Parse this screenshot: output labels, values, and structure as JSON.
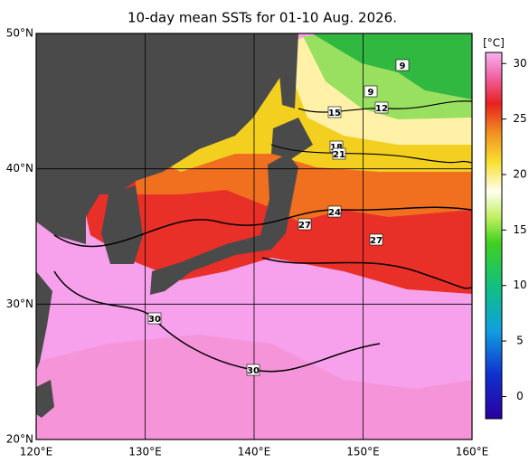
{
  "title": "10-day mean SSTs for 01-10 Aug. 2026.",
  "unit": "[°C]",
  "lon_range": [
    120,
    160
  ],
  "lat_range": [
    20,
    50
  ],
  "lon_ticks": [
    {
      "value": 120,
      "label": "120°E"
    },
    {
      "value": 130,
      "label": "130°E"
    },
    {
      "value": 140,
      "label": "140°E"
    },
    {
      "value": 150,
      "label": "150°E"
    },
    {
      "value": 160,
      "label": "160°E"
    }
  ],
  "lat_ticks": [
    {
      "value": 20,
      "label": "20°N"
    },
    {
      "value": 30,
      "label": "30°N"
    },
    {
      "value": 40,
      "label": "40°N"
    },
    {
      "value": 50,
      "label": "50°N"
    }
  ],
  "colorbar": {
    "range": [
      -2,
      31
    ],
    "ticks": [
      0,
      5,
      10,
      15,
      20,
      25,
      30
    ]
  },
  "contour_labels": [
    9,
    9,
    12,
    15,
    18,
    21,
    24,
    27,
    27,
    30,
    30
  ]
}
